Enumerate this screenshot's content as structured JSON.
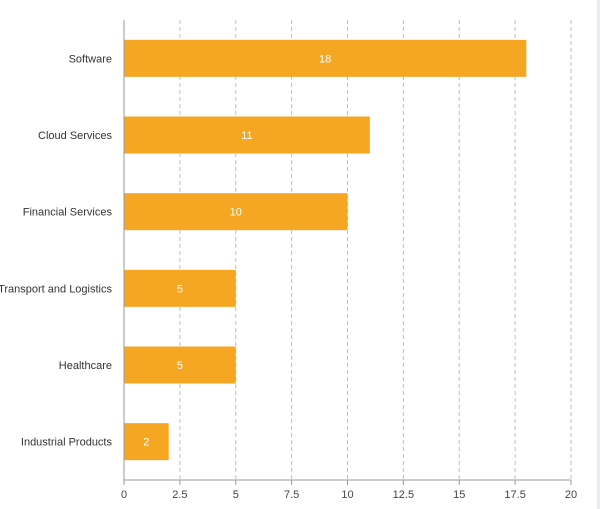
{
  "chart_data": {
    "type": "bar",
    "orientation": "horizontal",
    "categories": [
      "Software",
      "Cloud Services",
      "Financial Services",
      "Transport and Logistics",
      "Healthcare",
      "Industrial Products"
    ],
    "values": [
      18,
      11,
      10,
      5,
      5,
      2
    ],
    "value_labels": [
      "18",
      "11",
      "10",
      "5",
      "5",
      "2"
    ],
    "xlim": [
      0,
      20
    ],
    "x_ticks": [
      0,
      2.5,
      5,
      7.5,
      10,
      12.5,
      15,
      17.5,
      20
    ],
    "x_tick_labels": [
      "0",
      "2.5",
      "5",
      "7.5",
      "10",
      "12.5",
      "15",
      "17.5",
      "20"
    ],
    "grid": "vertical dashed",
    "bar_color": "#f5a623",
    "title": "",
    "xlabel": "",
    "ylabel": ""
  }
}
